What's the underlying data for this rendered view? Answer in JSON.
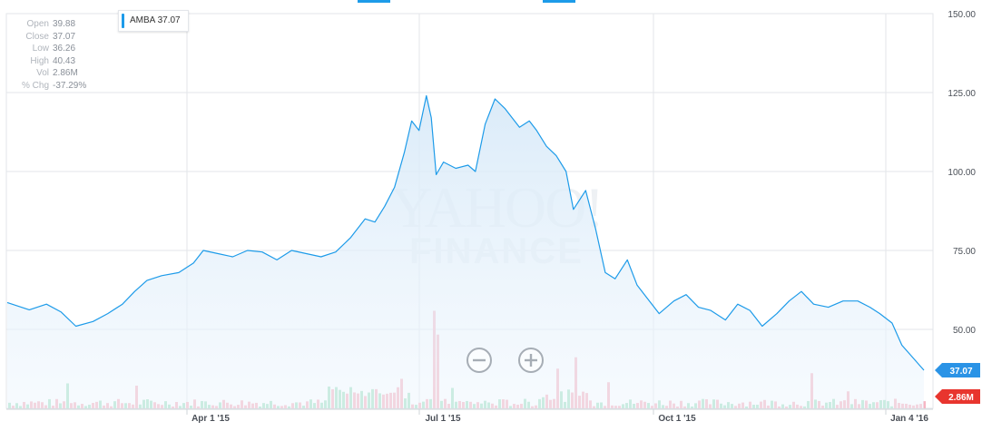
{
  "legend": {
    "symbol": "AMBA",
    "value": "37.07",
    "color": "#1d9be9"
  },
  "ohlc": [
    {
      "label": "Open",
      "value": "39.88"
    },
    {
      "label": "Close",
      "value": "37.07"
    },
    {
      "label": "Low",
      "value": "36.26"
    },
    {
      "label": "High",
      "value": "40.43"
    },
    {
      "label": "Vol",
      "value": "2.86M"
    },
    {
      "label": "% Chg",
      "value": "-37.29%"
    }
  ],
  "watermark": {
    "line1": "YAHOO!",
    "line2": "FINANCE"
  },
  "zoom": {
    "out": "zoom-out",
    "in": "zoom-in"
  },
  "colors": {
    "line": "#1d9be9",
    "vol_up": "#a8e2c6",
    "vol_down": "#f6b6c3",
    "badge_price": "#2a93e6",
    "badge_volume": "#e8352e"
  },
  "chart_data": {
    "type": "area",
    "x_labels": [
      "Apr 1 '15",
      "Jul 1 '15",
      "Oct 1 '15",
      "Jan 4 '16"
    ],
    "y_ticks": [
      "150.00",
      "125.00",
      "100.00",
      "75.00",
      "50.00"
    ],
    "ylim": [
      25,
      150
    ],
    "current_price": "37.07",
    "current_volume": "2.86M",
    "series": [
      {
        "name": "AMBA",
        "points": [
          [
            "2015-01-06",
            58.5
          ],
          [
            "2015-01-15",
            56.2
          ],
          [
            "2015-01-22",
            58
          ],
          [
            "2015-01-28",
            55.5
          ],
          [
            "2015-02-03",
            51
          ],
          [
            "2015-02-10",
            52.5
          ],
          [
            "2015-02-16",
            55
          ],
          [
            "2015-02-22",
            58
          ],
          [
            "2015-02-27",
            62
          ],
          [
            "2015-03-04",
            65.5
          ],
          [
            "2015-03-10",
            67
          ],
          [
            "2015-03-17",
            68
          ],
          [
            "2015-03-23",
            71
          ],
          [
            "2015-03-27",
            75
          ],
          [
            "2015-04-02",
            74
          ],
          [
            "2015-04-08",
            73
          ],
          [
            "2015-04-14",
            75
          ],
          [
            "2015-04-20",
            74.5
          ],
          [
            "2015-04-26",
            72
          ],
          [
            "2015-05-02",
            75
          ],
          [
            "2015-05-08",
            74
          ],
          [
            "2015-05-14",
            73
          ],
          [
            "2015-05-20",
            74.5
          ],
          [
            "2015-05-26",
            79
          ],
          [
            "2015-06-01",
            85
          ],
          [
            "2015-06-05",
            84
          ],
          [
            "2015-06-09",
            89
          ],
          [
            "2015-06-13",
            95
          ],
          [
            "2015-06-17",
            106
          ],
          [
            "2015-06-20",
            116
          ],
          [
            "2015-06-23",
            113
          ],
          [
            "2015-06-26",
            124
          ],
          [
            "2015-06-28",
            117
          ],
          [
            "2015-06-30",
            99
          ],
          [
            "2015-07-03",
            103
          ],
          [
            "2015-07-08",
            101
          ],
          [
            "2015-07-13",
            102
          ],
          [
            "2015-07-16",
            100
          ],
          [
            "2015-07-20",
            115
          ],
          [
            "2015-07-24",
            123
          ],
          [
            "2015-07-28",
            120
          ],
          [
            "2015-08-03",
            114
          ],
          [
            "2015-08-07",
            116
          ],
          [
            "2015-08-10",
            113
          ],
          [
            "2015-08-14",
            108
          ],
          [
            "2015-08-18",
            105
          ],
          [
            "2015-08-22",
            100
          ],
          [
            "2015-08-25",
            88
          ],
          [
            "2015-08-30",
            94
          ],
          [
            "2015-09-03",
            82
          ],
          [
            "2015-09-07",
            68
          ],
          [
            "2015-09-11",
            66
          ],
          [
            "2015-09-16",
            72
          ],
          [
            "2015-09-20",
            64
          ],
          [
            "2015-09-24",
            60
          ],
          [
            "2015-09-29",
            55
          ],
          [
            "2015-10-05",
            59
          ],
          [
            "2015-10-10",
            61
          ],
          [
            "2015-10-15",
            57
          ],
          [
            "2015-10-20",
            56
          ],
          [
            "2015-10-26",
            53
          ],
          [
            "2015-10-31",
            58
          ],
          [
            "2015-11-05",
            56
          ],
          [
            "2015-11-10",
            51
          ],
          [
            "2015-11-16",
            55
          ],
          [
            "2015-11-21",
            59
          ],
          [
            "2015-11-26",
            62
          ],
          [
            "2015-12-01",
            58
          ],
          [
            "2015-12-07",
            57
          ],
          [
            "2015-12-13",
            59
          ],
          [
            "2015-12-19",
            59
          ],
          [
            "2015-12-24",
            57
          ],
          [
            "2015-12-28",
            55
          ],
          [
            "2016-01-02",
            52
          ],
          [
            "2016-01-06",
            45
          ],
          [
            "2016-01-10",
            41.5
          ],
          [
            "2016-01-15",
            37.07
          ]
        ]
      }
    ],
    "volume": [
      [
        "2015-06-29",
        8.6
      ],
      [
        "2015-06-30",
        6.5
      ],
      [
        "2015-08-25",
        4.5
      ],
      [
        "2015-08-18",
        3.5
      ],
      [
        "2015-01-30",
        2.2
      ],
      [
        "2015-02-27",
        2.0
      ],
      [
        "2015-06-10",
        2.4
      ],
      [
        "2015-06-15",
        2.6
      ],
      [
        "2015-07-06",
        1.8
      ],
      [
        "2015-09-08",
        2.3
      ],
      [
        "2015-11-30",
        3.1
      ],
      [
        "2015-10-14",
        2.0
      ],
      [
        "2016-01-11",
        1.9
      ],
      [
        "2016-01-14",
        1.7
      ],
      [
        "2015-12-14",
        1.5
      ]
    ]
  }
}
